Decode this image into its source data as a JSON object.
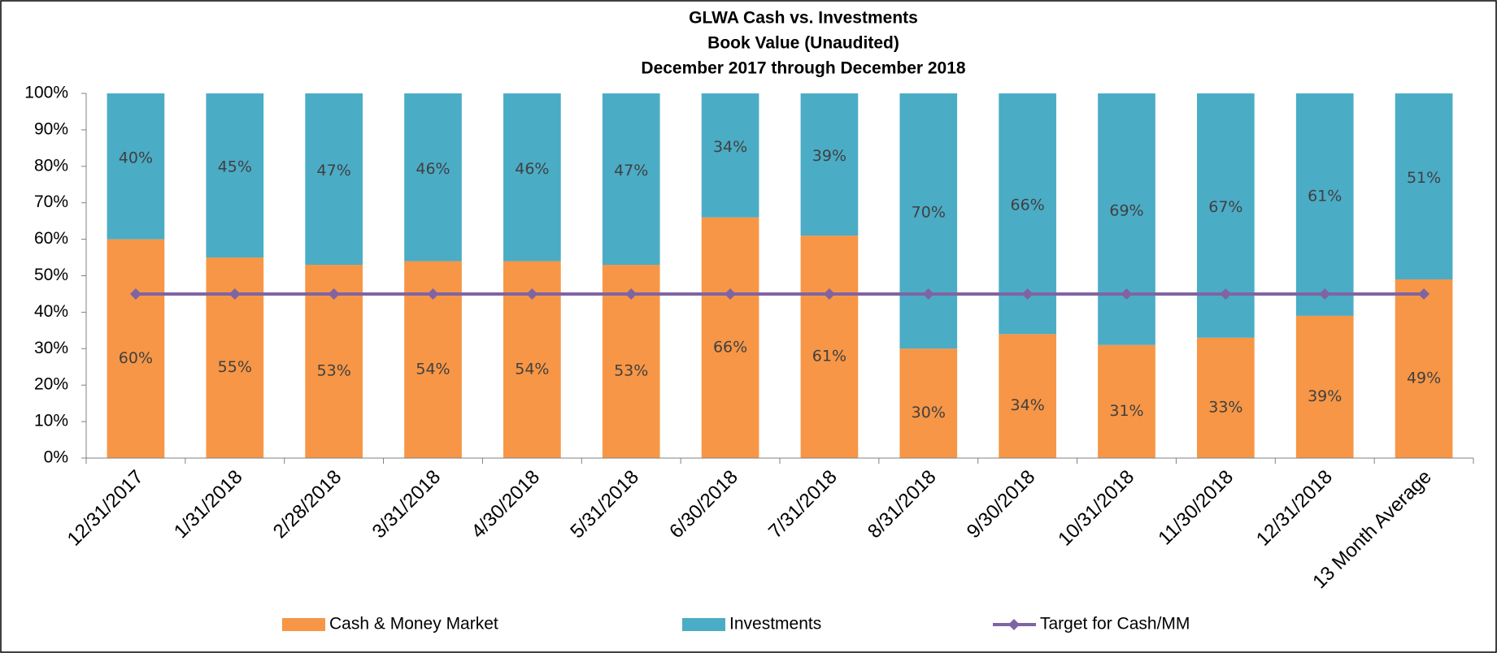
{
  "chart_data": {
    "type": "bar",
    "stacked": true,
    "title": "GLWA Cash vs. Investments",
    "subtitle": [
      "Book Value (Unaudited)",
      "December 2017 through December 2018"
    ],
    "categories": [
      "12/31/2017",
      "1/31/2018",
      "2/28/2018",
      "3/31/2018",
      "4/30/2018",
      "5/31/2018",
      "6/30/2018",
      "7/31/2018",
      "8/31/2018",
      "9/30/2018",
      "10/31/2018",
      "11/30/2018",
      "12/31/2018",
      "13 Month Average"
    ],
    "series": [
      {
        "name": "Cash & Money Market",
        "color": "#f79646",
        "values": [
          60,
          55,
          53,
          54,
          54,
          53,
          66,
          61,
          30,
          34,
          31,
          33,
          39,
          49
        ],
        "value_labels": [
          "60%",
          "55%",
          "53%",
          "54%",
          "54%",
          "53%",
          "66%",
          "61%",
          "30%",
          "34%",
          "31%",
          "33%",
          "39%",
          "49%"
        ]
      },
      {
        "name": "Investments",
        "color": "#4bacc6",
        "values": [
          40,
          45,
          47,
          46,
          46,
          47,
          34,
          39,
          70,
          66,
          69,
          67,
          61,
          51
        ],
        "value_labels": [
          "40%",
          "45%",
          "47%",
          "46%",
          "46%",
          "47%",
          "34%",
          "39%",
          "70%",
          "66%",
          "69%",
          "67%",
          "61%",
          "51%"
        ]
      },
      {
        "name": "Target for Cash/MM",
        "color": "#8064a2",
        "type": "line",
        "values": [
          45,
          45,
          45,
          45,
          45,
          45,
          45,
          45,
          45,
          45,
          45,
          45,
          45,
          45
        ]
      }
    ],
    "ylim": [
      0,
      100
    ],
    "yticks": [
      {
        "value": 0,
        "label": "0%"
      },
      {
        "value": 10,
        "label": "10%"
      },
      {
        "value": 20,
        "label": "20%"
      },
      {
        "value": 30,
        "label": "30%"
      },
      {
        "value": 40,
        "label": "40%"
      },
      {
        "value": 50,
        "label": "50%"
      },
      {
        "value": 60,
        "label": "60%"
      },
      {
        "value": 70,
        "label": "70%"
      },
      {
        "value": 80,
        "label": "80%"
      },
      {
        "value": 90,
        "label": "90%"
      },
      {
        "value": 100,
        "label": "100%"
      }
    ],
    "legend": "bottom"
  }
}
